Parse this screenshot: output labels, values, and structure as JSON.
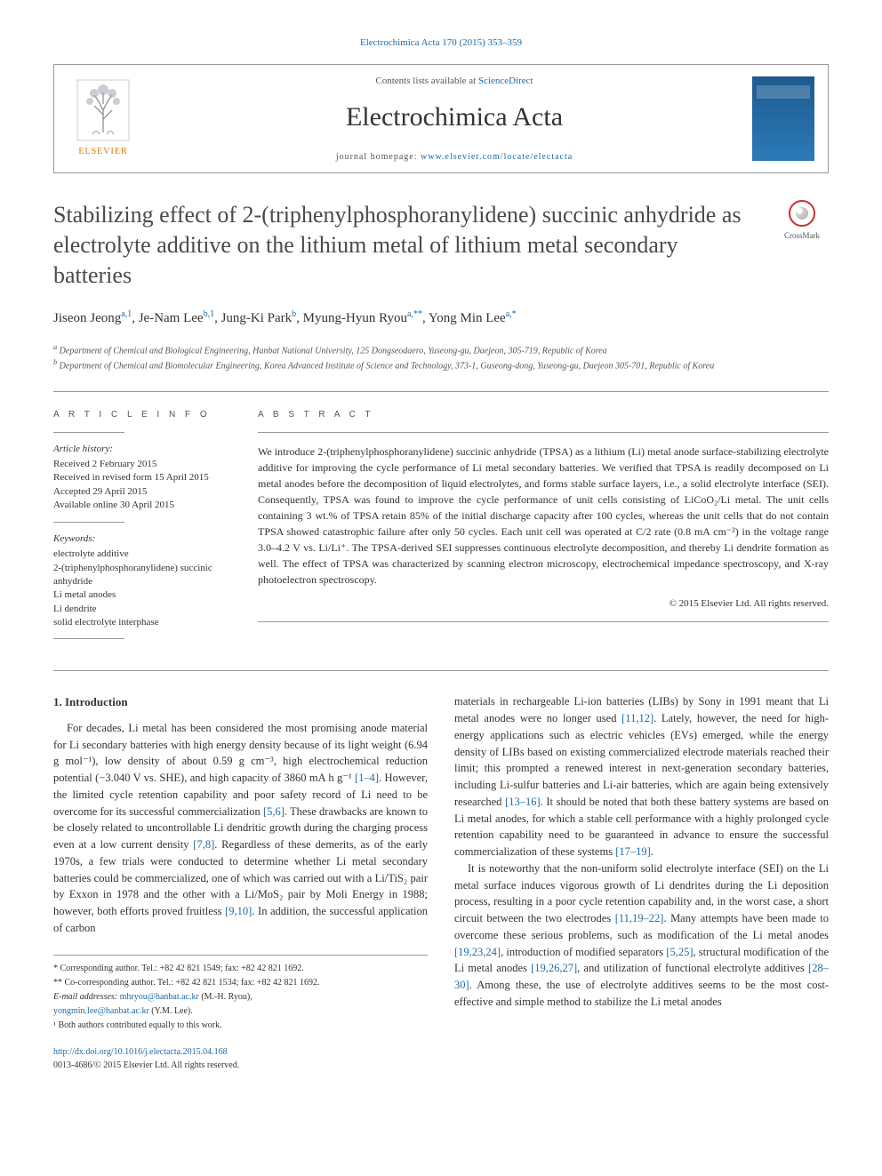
{
  "header": {
    "citation": "Electrochimica Acta 170 (2015) 353–359",
    "contents_available": "Contents lists available at ",
    "sciencedirect": "ScienceDirect",
    "journal_name": "Electrochimica Acta",
    "homepage_label": "journal homepage: ",
    "homepage_url": "www.elsevier.com/locate/electacta",
    "publisher": "ELSEVIER",
    "crossmark": "CrossMark"
  },
  "article": {
    "title": "Stabilizing effect of 2-(triphenylphosphoranylidene) succinic anhydride as electrolyte additive on the lithium metal of lithium metal secondary batteries",
    "authors_html": "Jiseon Jeong<sup class='author-link'>a,1</sup>, Je-Nam Lee<sup class='author-link'>b,1</sup>, Jung-Ki Park<sup class='author-link'>b</sup>, Myung-Hyun Ryou<sup class='author-link'>a,**</sup>, Yong Min Lee<sup class='author-link'>a,*</sup>",
    "affiliations": {
      "a": "Department of Chemical and Biological Engineering, Hanbat National University, 125 Dongseodaero, Yuseong-gu, Daejeon, 305-719, Republic of Korea",
      "b": "Department of Chemical and Biomolecular Engineering, Korea Advanced Institute of Science and Technology, 373-1, Guseong-dong, Yuseong-gu, Daejeon 305-701, Republic of Korea"
    }
  },
  "info": {
    "heading": "A R T I C L E   I N F O",
    "history_label": "Article history:",
    "history": [
      "Received 2 February 2015",
      "Received in revised form 15 April 2015",
      "Accepted 29 April 2015",
      "Available online 30 April 2015"
    ],
    "keywords_label": "Keywords:",
    "keywords": [
      "electrolyte additive",
      "2-(triphenylphosphoranylidene) succinic anhydride",
      "Li metal anodes",
      "Li dendrite",
      "solid electrolyte interphase"
    ]
  },
  "abstract": {
    "heading": "A B S T R A C T",
    "text": "We introduce 2-(triphenylphosphoranylidene) succinic anhydride (TPSA) as a lithium (Li) metal anode surface-stabilizing electrolyte additive for improving the cycle performance of Li metal secondary batteries. We verified that TPSA is readily decomposed on Li metal anodes before the decomposition of liquid electrolytes, and forms stable surface layers, i.e., a solid electrolyte interface (SEI). Consequently, TPSA was found to improve the cycle performance of unit cells consisting of LiCoO₂/Li metal. The unit cells containing 3 wt.% of TPSA retain 85% of the initial discharge capacity after 100 cycles, whereas the unit cells that do not contain TPSA showed catastrophic failure after only 50 cycles. Each unit cell was operated at C/2 rate (0.8 mA cm⁻²) in the voltage range 3.0–4.2 V vs. Li/Li⁺. The TPSA-derived SEI suppresses continuous electrolyte decomposition, and thereby Li dendrite formation as well. The effect of TPSA was characterized by scanning electron microscopy, electrochemical impedance spectroscopy, and X-ray photoelectron spectroscopy.",
    "copyright": "© 2015 Elsevier Ltd. All rights reserved."
  },
  "body": {
    "intro_heading": "1. Introduction",
    "left_p1_a": "For decades, Li metal has been considered the most promising anode material for Li secondary batteries with high energy density because of its light weight (6.94 g mol⁻¹), low density of about 0.59 g cm⁻³, high electrochemical reduction potential (−3.040 V vs. SHE), and high capacity of 3860 mA h g⁻¹ ",
    "ref_1_4": "[1–4]",
    "left_p1_b": ". However, the limited cycle retention capability and poor safety record of Li need to be overcome for its successful commercialization ",
    "ref_5_6": "[5,6]",
    "left_p1_c": ". These drawbacks are known to be closely related to uncontrollable Li dendritic growth during the charging process even at a low current density ",
    "ref_7_8": "[7,8]",
    "left_p1_d": ". Regardless of these demerits, as of the early 1970s, a few trials were conducted to determine whether Li metal secondary batteries could be commercialized, one of which was carried out with a Li/TiS₂ pair by Exxon in 1978 and the other with a Li/MoS₂ pair by Moli Energy in 1988; however, both efforts proved fruitless ",
    "ref_9_10": "[9,10]",
    "left_p1_e": ". In addition, the successful application of carbon",
    "right_p1_a": "materials in rechargeable Li-ion batteries (LIBs) by Sony in 1991 meant that Li metal anodes were no longer used ",
    "ref_11_12": "[11,12]",
    "right_p1_b": ". Lately, however, the need for high-energy applications such as electric vehicles (EVs) emerged, while the energy density of LIBs based on existing commercialized electrode materials reached their limit; this prompted a renewed interest in next-generation secondary batteries, including Li-sulfur batteries and Li-air batteries, which are again being extensively researched ",
    "ref_13_16": "[13–16]",
    "right_p1_c": ". It should be noted that both these battery systems are based on Li metal anodes, for which a stable cell performance with a highly prolonged cycle retention capability need to be guaranteed in advance to ensure the successful commercialization of these systems ",
    "ref_17_19": "[17–19]",
    "right_p1_d": ".",
    "right_p2_a": "It is noteworthy that the non-uniform solid electrolyte interface (SEI) on the Li metal surface induces vigorous growth of Li dendrites during the Li deposition process, resulting in a poor cycle retention capability and, in the worst case, a short circuit between the two electrodes ",
    "ref_11_19_22": "[11,19–22]",
    "right_p2_b": ". Many attempts have been made to overcome these serious problems, such as modification of the Li metal anodes ",
    "ref_19_23_24": "[19,23,24]",
    "right_p2_c": ", introduction of modified separators ",
    "ref_5_25": "[5,25]",
    "right_p2_d": ", structural modification of the Li metal anodes ",
    "ref_19_26_27": "[19,26,27]",
    "right_p2_e": ", and utilization of functional electrolyte additives ",
    "ref_28_30": "[28–30]",
    "right_p2_f": ". Among these, the use of electrolyte additives seems to be the most cost-effective and simple method to stabilize the Li metal anodes"
  },
  "footnotes": {
    "corr1": "* Corresponding author. Tel.: +82 42 821 1549; fax: +82 42 821 1692.",
    "corr2": "** Co-corresponding author. Tel.: +82 42 821 1534; fax: +82 42 821 1692.",
    "email_label": "E-mail addresses: ",
    "email1": "mhryou@hanbat.ac.kr",
    "email1_name": " (M.-H. Ryou),",
    "email2": "yongmin.lee@hanbat.ac.kr",
    "email2_name": " (Y.M. Lee).",
    "equal": "¹ Both authors contributed equally to this work.",
    "doi": "http://dx.doi.org/10.1016/j.electacta.2015.04.168",
    "issn_copyright": "0013-4686/© 2015 Elsevier Ltd. All rights reserved."
  },
  "colors": {
    "link": "#1f6aa5",
    "text": "#333333",
    "muted": "#555555",
    "border": "#999999",
    "elsevier": "#d97a00",
    "crossmark": "#c93030"
  }
}
